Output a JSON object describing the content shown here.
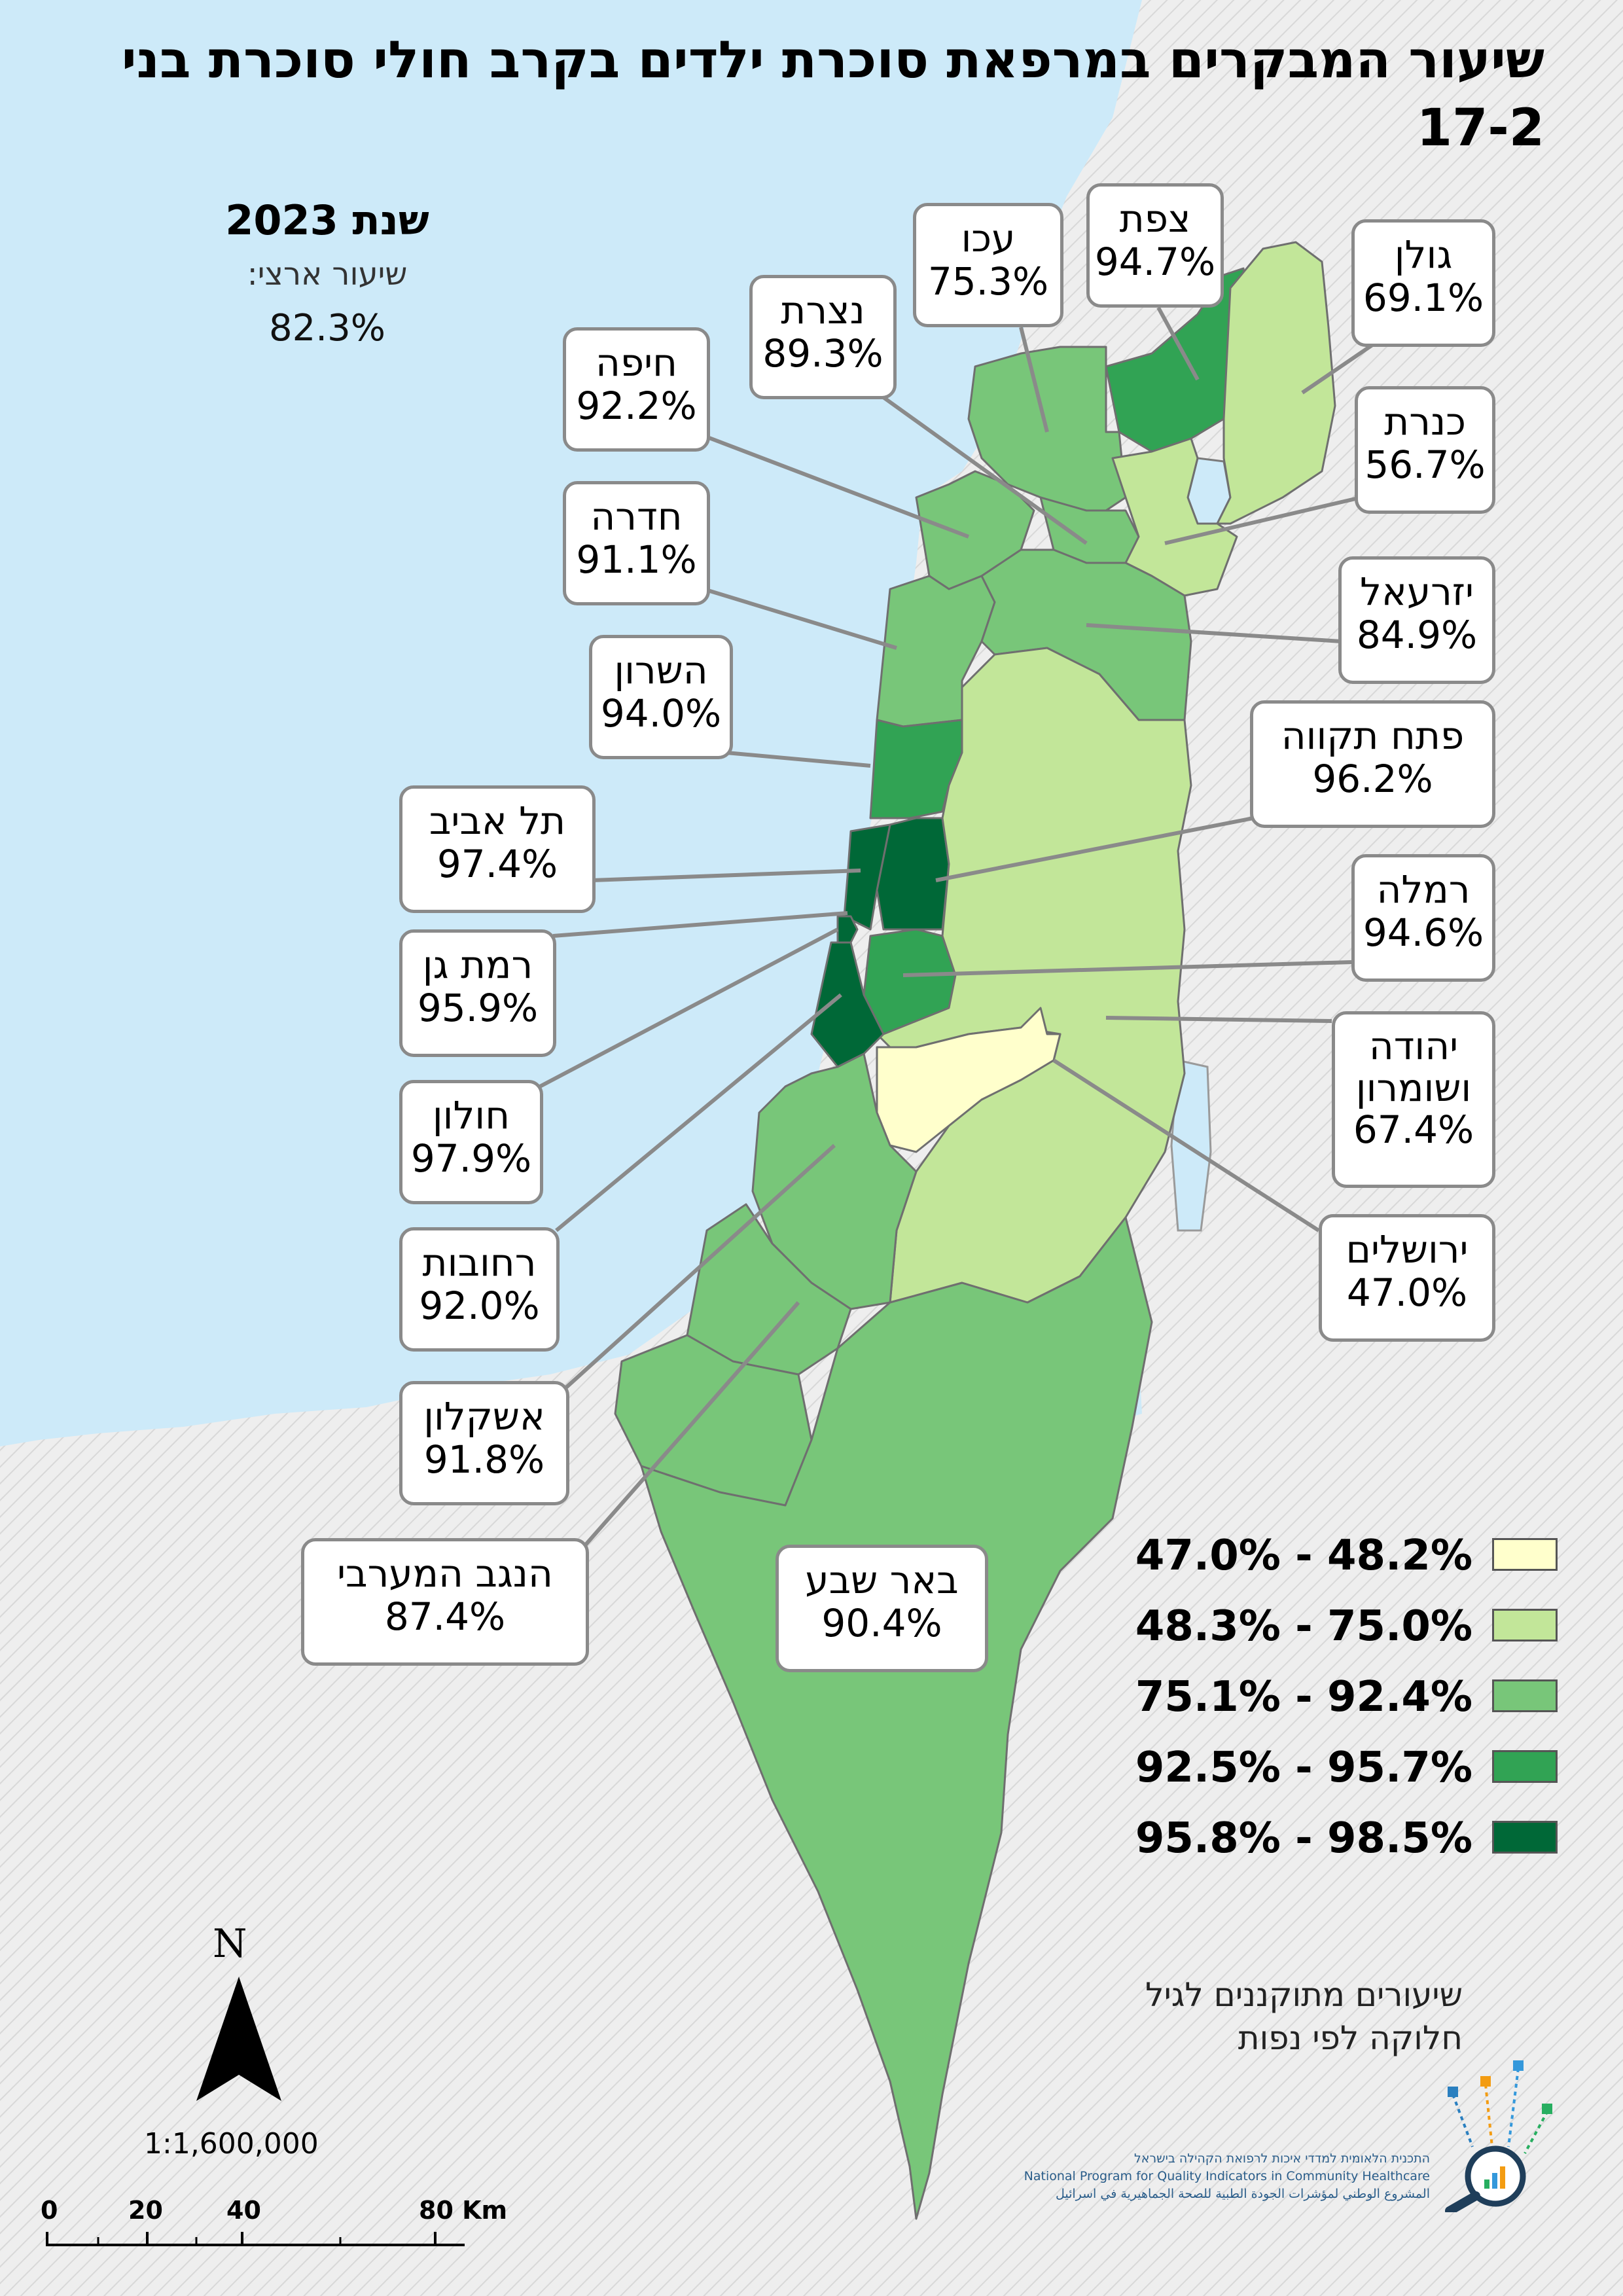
{
  "title": "שיעור המבקרים במרפאת סוכרת ילדים בקרב חולי סוכרת בני 17-2",
  "year_label": "שנת 2023",
  "national_rate_label": "שיעור ארצי:",
  "national_rate_value": "82.3%",
  "map_features": {
    "north_arrow_letter": "N",
    "scale_ratio": "1:1,600,000",
    "scale_ticks": [
      "0",
      "20",
      "40",
      "80 Km"
    ]
  },
  "regions": [
    {
      "name": "צפת",
      "value": "94.7%",
      "fill": "#31a354"
    },
    {
      "name": "עכו",
      "value": "75.3%",
      "fill": "#78c679"
    },
    {
      "name": "נצרת",
      "value": "89.3%",
      "fill": "#78c679"
    },
    {
      "name": "חיפה",
      "value": "92.2%",
      "fill": "#78c679"
    },
    {
      "name": "גולן",
      "value": "69.1%",
      "fill": "#c2e699"
    },
    {
      "name": "כנרת",
      "value": "56.7%",
      "fill": "#c2e699"
    },
    {
      "name": "חדרה",
      "value": "91.1%",
      "fill": "#78c679"
    },
    {
      "name": "יזרעאל",
      "value": "84.9%",
      "fill": "#78c679"
    },
    {
      "name": "השרון",
      "value": "94.0%",
      "fill": "#31a354"
    },
    {
      "name": "פתח תקווה",
      "value": "96.2%",
      "fill": "#006837"
    },
    {
      "name": "תל אביב",
      "value": "97.4%",
      "fill": "#006837"
    },
    {
      "name": "רמלה",
      "value": "94.6%",
      "fill": "#31a354"
    },
    {
      "name": "רמת גן",
      "value": "95.9%",
      "fill": "#006837"
    },
    {
      "name": "יהודה ושומרון",
      "value": "67.4%",
      "fill": "#c2e699"
    },
    {
      "name": "חולון",
      "value": "97.9%",
      "fill": "#006837"
    },
    {
      "name": "ירושלים",
      "value": "47.0%",
      "fill": "#ffffcc"
    },
    {
      "name": "רחובות",
      "value": "92.0%",
      "fill": "#78c679"
    },
    {
      "name": "אשקלון",
      "value": "91.8%",
      "fill": "#78c679"
    },
    {
      "name": "הנגב המערבי",
      "value": "87.4%",
      "fill": "#78c679"
    },
    {
      "name": "באר שבע",
      "value": "90.4%",
      "fill": "#78c679"
    }
  ],
  "legend": [
    {
      "label": "47.0% - 48.2%",
      "color": "#ffffcc"
    },
    {
      "label": "48.3% - 75.0%",
      "color": "#c2e699"
    },
    {
      "label": "75.1% - 92.4%",
      "color": "#78c679"
    },
    {
      "label": "92.5% - 95.7%",
      "color": "#31a354"
    },
    {
      "label": "95.8% - 98.5%",
      "color": "#006837"
    }
  ],
  "note_lines": [
    "שיעורים מתוקננים לגיל",
    "חלוקה לפי נפות"
  ],
  "logo_text": [
    "התכנית הלאומית למדדי איכות לרפואת הקהילה בישראל",
    "National Program for Quality Indicators in Community Healthcare",
    "المشروع الوطني لمؤشرات الجودة الطبية للصحة الجماهيرية في اسرائيل"
  ]
}
